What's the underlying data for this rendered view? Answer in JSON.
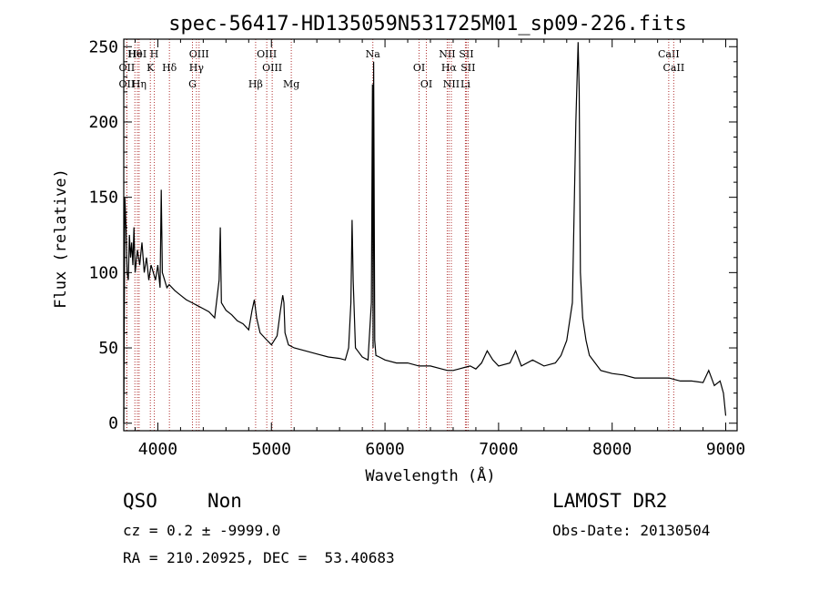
{
  "chart_data": {
    "type": "line",
    "title": "spec-56417-HD135059N531725M01_sp09-226.fits",
    "xlabel": "Wavelength (Å)",
    "ylabel": "Flux (relative)",
    "xlim": [
      3700,
      9100
    ],
    "ylim": [
      -5,
      255
    ],
    "xticks": [
      4000,
      5000,
      6000,
      7000,
      8000,
      9000
    ],
    "yticks": [
      0,
      50,
      100,
      150,
      200,
      250
    ],
    "grid": false,
    "series": [
      {
        "x": [
          3700,
          3710,
          3720,
          3730,
          3740,
          3750,
          3760,
          3770,
          3780,
          3790,
          3800,
          3820,
          3840,
          3860,
          3880,
          3900,
          3920,
          3940,
          3960,
          3980,
          4000,
          4020,
          4030,
          4040,
          4060,
          4080,
          4100,
          4150,
          4200,
          4250,
          4300,
          4350,
          4400,
          4450,
          4500,
          4540,
          4550,
          4560,
          4600,
          4650,
          4700,
          4750,
          4800,
          4830,
          4850,
          4870,
          4900,
          4950,
          5000,
          5050,
          5080,
          5100,
          5110,
          5120,
          5150,
          5200,
          5300,
          5400,
          5500,
          5600,
          5650,
          5680,
          5700,
          5710,
          5720,
          5740,
          5760,
          5800,
          5850,
          5880,
          5890,
          5895,
          5900,
          5910,
          5920,
          5950,
          6000,
          6100,
          6200,
          6300,
          6400,
          6500,
          6550,
          6600,
          6650,
          6700,
          6750,
          6800,
          6850,
          6900,
          6950,
          7000,
          7100,
          7150,
          7200,
          7300,
          7400,
          7500,
          7550,
          7600,
          7650,
          7680,
          7700,
          7710,
          7720,
          7740,
          7770,
          7800,
          7850,
          7900,
          8000,
          8100,
          8200,
          8300,
          8400,
          8500,
          8600,
          8700,
          8800,
          8850,
          8900,
          8950,
          8980,
          9000
        ],
        "y": [
          0,
          150,
          130,
          100,
          95,
          125,
          110,
          120,
          105,
          130,
          100,
          115,
          105,
          120,
          100,
          110,
          95,
          105,
          100,
          95,
          105,
          90,
          155,
          100,
          95,
          90,
          92,
          88,
          85,
          82,
          80,
          78,
          76,
          74,
          70,
          95,
          130,
          80,
          75,
          72,
          68,
          66,
          62,
          75,
          82,
          70,
          60,
          56,
          52,
          58,
          75,
          85,
          80,
          60,
          52,
          50,
          48,
          46,
          44,
          43,
          42,
          50,
          80,
          135,
          95,
          50,
          48,
          44,
          42,
          80,
          225,
          50,
          240,
          55,
          45,
          44,
          42,
          40,
          40,
          38,
          38,
          36,
          35,
          35,
          36,
          37,
          38,
          36,
          40,
          48,
          42,
          38,
          40,
          48,
          38,
          42,
          38,
          40,
          45,
          55,
          80,
          200,
          253,
          220,
          100,
          70,
          55,
          45,
          40,
          35,
          33,
          32,
          30,
          30,
          30,
          30,
          28,
          28,
          27,
          35,
          25,
          28,
          20,
          5
        ],
        "color": "#000000"
      }
    ],
    "lines": [
      {
        "name": "Hθ",
        "x": 3798
      },
      {
        "name": "OII",
        "x": 3727
      },
      {
        "name": "OII",
        "x": 3727
      },
      {
        "name": "HeI",
        "x": 3820
      },
      {
        "name": "K",
        "x": 3934
      },
      {
        "name": "Hη",
        "x": 3835
      },
      {
        "name": "H",
        "x": 3969
      },
      {
        "name": "Hδ",
        "x": 4102
      },
      {
        "name": "G",
        "x": 4305
      },
      {
        "name": "OIII",
        "x": 4363
      },
      {
        "name": "Hγ",
        "x": 4340
      },
      {
        "name": "Hβ",
        "x": 4861
      },
      {
        "name": "OIII",
        "x": 4959
      },
      {
        "name": "OIII",
        "x": 5007
      },
      {
        "name": "Mg",
        "x": 5175
      },
      {
        "name": "Na",
        "x": 5893
      },
      {
        "name": "OI",
        "x": 6300
      },
      {
        "name": "OI",
        "x": 6364
      },
      {
        "name": "NII",
        "x": 6548
      },
      {
        "name": "Hα",
        "x": 6563
      },
      {
        "name": "NII",
        "x": 6584
      },
      {
        "name": "SII",
        "x": 6716
      },
      {
        "name": "SII",
        "x": 6731
      },
      {
        "name": "Li",
        "x": 6708
      },
      {
        "name": "CaII",
        "x": 8498
      },
      {
        "name": "CaII",
        "x": 8542
      }
    ]
  },
  "info": {
    "class": "QSO",
    "subclass": "Non",
    "survey": "LAMOST DR2",
    "cz": "cz = 0.2 ± -9999.0",
    "obs_date": "Obs-Date: 20130504",
    "radec": "RA = 210.20925, DEC =  53.40683"
  }
}
